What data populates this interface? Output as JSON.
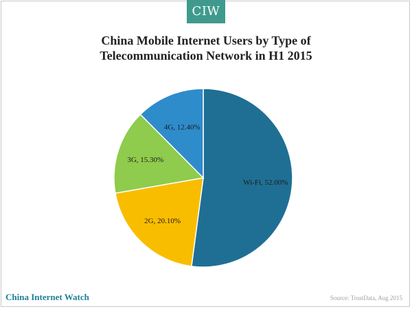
{
  "logo": {
    "text": "CIW"
  },
  "chart_data": {
    "type": "pie",
    "title": "China Mobile Internet Users by Type of Telecommunication Network in H1 2015",
    "title_lines": [
      "China Mobile Internet Users by Type of",
      "Telecommunication Network in H1 2015"
    ],
    "categories": [
      "Wi-Fi",
      "2G",
      "3G",
      "4G"
    ],
    "values": [
      52.0,
      20.1,
      15.3,
      12.4
    ],
    "labels": [
      "Wi-Fi, 52.00%",
      "2G, 20.10%",
      "3G, 15.30%",
      "4G, 12.40%"
    ],
    "colors": [
      "#1f6f94",
      "#f9bd00",
      "#8fcb4d",
      "#2e8ccb"
    ],
    "start": "top, clockwise",
    "legend": "none"
  },
  "footer": {
    "brand": "China Internet Watch",
    "source": "Source: TrustData, Aug 2015"
  }
}
